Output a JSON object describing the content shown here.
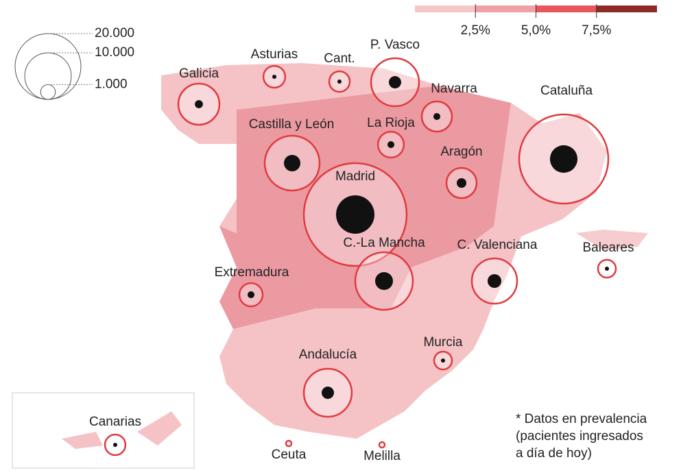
{
  "legend": {
    "sizes": [
      {
        "value": 20000,
        "label": "20.000"
      },
      {
        "value": 10000,
        "label": "10.000"
      },
      {
        "value": 1000,
        "label": "1.000"
      }
    ],
    "color_scale": {
      "colors": [
        "#f7c6c9",
        "#f0a0a6",
        "#e8555c",
        "#8e2a2a"
      ],
      "ticks": [
        {
          "value": 2.5,
          "label": "2,5%"
        },
        {
          "value": 5.0,
          "label": "5,0%"
        },
        {
          "value": 7.5,
          "label": "7,5%"
        }
      ],
      "range": [
        0,
        10
      ]
    }
  },
  "regions": [
    {
      "label": "Galicia",
      "value": 7800,
      "inner": 300
    },
    {
      "label": "Asturias",
      "value": 2200,
      "inner": 80
    },
    {
      "label": "Cant.",
      "value": 1950,
      "inner": 80
    },
    {
      "label": "P. Vasco",
      "value": 10600,
      "inner": 700
    },
    {
      "label": "Navarra",
      "value": 4200,
      "inner": 220
    },
    {
      "label": "Cataluña",
      "value": 36700,
      "inner": 3500
    },
    {
      "label": "Castilla y León",
      "value": 13900,
      "inner": 1250
    },
    {
      "label": "La Rioja",
      "value": 3100,
      "inner": 220
    },
    {
      "label": "Aragón",
      "value": 4200,
      "inner": 430
    },
    {
      "label": "Madrid",
      "value": 48800,
      "inner": 6800
    },
    {
      "label": "C.-La Mancha",
      "value": 15300,
      "inner": 1470
    },
    {
      "label": "C. Valenciana",
      "value": 9450,
      "inner": 870
    },
    {
      "label": "Baleares",
      "value": 1470,
      "inner": 80
    },
    {
      "label": "Extremadura",
      "value": 2500,
      "inner": 220
    },
    {
      "label": "Murcia",
      "value": 1470,
      "inner": 80
    },
    {
      "label": "Andalucía",
      "value": 10600,
      "inner": 700
    },
    {
      "label": "Canarias",
      "value": 1950,
      "inner": 80
    },
    {
      "label": "Ceuta",
      "value": 140,
      "inner": 0
    },
    {
      "label": "Melilla",
      "value": 140,
      "inner": 0
    }
  ],
  "note": [
    "* Datos en prevalencia",
    "(pacientes ingresados",
    "a día de hoy)"
  ]
}
